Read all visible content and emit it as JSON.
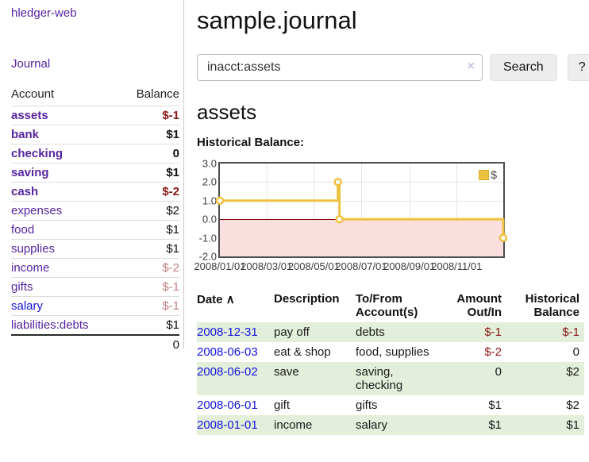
{
  "sidebar": {
    "app_title": "hledger-web",
    "nav_journal": "Journal",
    "accounts_header": {
      "account": "Account",
      "balance": "Balance"
    },
    "accounts": [
      {
        "name": "assets",
        "balance": "$-1",
        "cls": "nm d0 bold",
        "bcls": "bal bold neg"
      },
      {
        "name": "bank",
        "balance": "$1",
        "cls": "nm d1 bold",
        "bcls": "bal bold"
      },
      {
        "name": "checking",
        "balance": "0",
        "cls": "nm d2 bold",
        "bcls": "bal bold"
      },
      {
        "name": "saving",
        "balance": "$1",
        "cls": "nm d2 bold",
        "bcls": "bal bold"
      },
      {
        "name": "cash",
        "balance": "$-2",
        "cls": "nm d1 bold",
        "bcls": "bal bold neg"
      },
      {
        "name": "expenses",
        "balance": "$2",
        "cls": "nm d0",
        "bcls": "bal"
      },
      {
        "name": "food",
        "balance": "$1",
        "cls": "nm d1",
        "bcls": "bal"
      },
      {
        "name": "supplies",
        "balance": "$1",
        "cls": "nm d1",
        "bcls": "bal"
      },
      {
        "name": "income",
        "balance": "$-2",
        "cls": "nm d0",
        "bcls": "bal negsoft"
      },
      {
        "name": "gifts",
        "balance": "$-1",
        "cls": "nm d1",
        "bcls": "bal negsoft"
      },
      {
        "name": "salary",
        "balance": "$-1",
        "cls": "nm d1 blue",
        "bcls": "bal negsoft"
      },
      {
        "name": "liabilities:debts",
        "balance": "$1",
        "cls": "nm d0",
        "bcls": "bal"
      }
    ],
    "total": "0"
  },
  "header": {
    "title": "sample.journal"
  },
  "search": {
    "value": "inacct:assets",
    "clear_icon": "×",
    "button": "Search",
    "help": "?"
  },
  "account_page": {
    "heading": "assets",
    "chart_label": "Historical Balance:"
  },
  "chart_data": {
    "type": "line",
    "title": "Historical Balance",
    "legend_position": "top-right",
    "grid": true,
    "x_range_days": 365,
    "ylim": [
      -2,
      3
    ],
    "y_ticks": [
      {
        "label": "3.0",
        "value": 3
      },
      {
        "label": "2.0",
        "value": 2
      },
      {
        "label": "1.0",
        "value": 1
      },
      {
        "label": "0.0",
        "value": 0
      },
      {
        "label": "-1.0",
        "value": -1
      },
      {
        "label": "-2.0",
        "value": -2
      }
    ],
    "x_ticks": [
      {
        "label": "2008/01/01",
        "day": 0
      },
      {
        "label": "2008/03/01",
        "day": 60
      },
      {
        "label": "2008/05/01",
        "day": 121
      },
      {
        "label": "2008/07/01",
        "day": 182
      },
      {
        "label": "2008/09/01",
        "day": 244
      },
      {
        "label": "2008/11/01",
        "day": 305
      }
    ],
    "series": [
      {
        "name": "$",
        "color": "#edc240",
        "steps": true,
        "points": [
          {
            "date": "2008-01-01",
            "day": 0,
            "value": 1
          },
          {
            "date": "2008-06-01",
            "day": 152,
            "value": 2
          },
          {
            "date": "2008-06-03",
            "day": 154,
            "value": 0
          },
          {
            "date": "2008-12-31",
            "day": 365,
            "value": -1
          }
        ]
      }
    ],
    "colors": {
      "zero_line": "#8b0000",
      "negative_fill": "#fbdede",
      "grid": "#e6e6e6",
      "border": "#4d4d4d",
      "line": "#edc240"
    }
  },
  "register": {
    "headers": {
      "date": "Date",
      "sort_arrow": "∧",
      "description": "Description",
      "accounts": "To/From\nAccount(s)",
      "amount": "Amount\nOut/In",
      "balance": "Historical\nBalance"
    },
    "rows": [
      {
        "date": "2008-12-31",
        "description": "pay off",
        "accounts": "debts",
        "amount": "$-1",
        "balance": "$-1",
        "row_cls": "green",
        "amount_cls": "r neg",
        "balance_cls": "r neg last"
      },
      {
        "date": "2008-06-03",
        "description": "eat & shop",
        "accounts": "food, supplies",
        "amount": "$-2",
        "balance": "0",
        "row_cls": "",
        "amount_cls": "r neg",
        "balance_cls": "r last"
      },
      {
        "date": "2008-06-02",
        "description": "save",
        "accounts": "saving,\nchecking",
        "amount": "0",
        "balance": "$2",
        "row_cls": "green",
        "amount_cls": "r",
        "balance_cls": "r last"
      },
      {
        "date": "2008-06-01",
        "description": "gift",
        "accounts": "gifts",
        "amount": "$1",
        "balance": "$2",
        "row_cls": "",
        "amount_cls": "r",
        "balance_cls": "r last"
      },
      {
        "date": "2008-01-01",
        "description": "income",
        "accounts": "salary",
        "amount": "$1",
        "balance": "$1",
        "row_cls": "green",
        "amount_cls": "r",
        "balance_cls": "r last"
      }
    ]
  }
}
